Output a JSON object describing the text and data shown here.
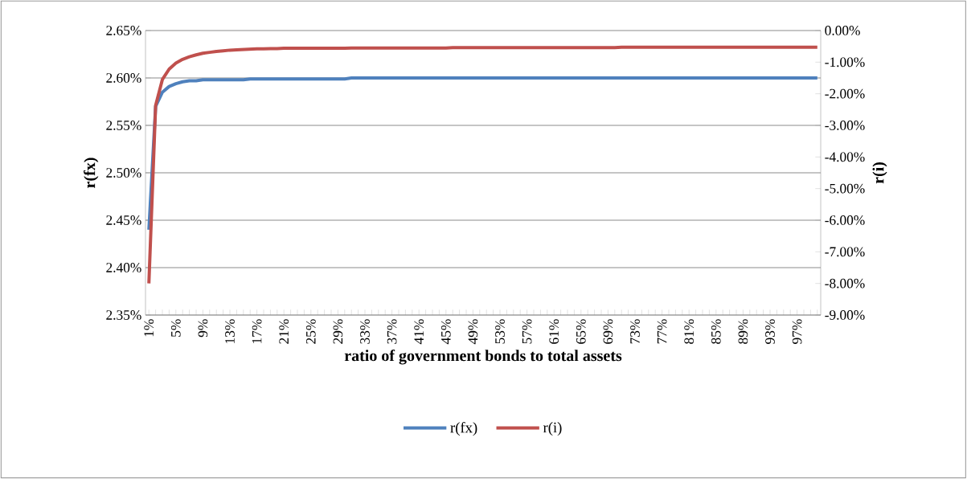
{
  "chart_data": {
    "type": "line",
    "xlabel": "ratio of government bonds to total assets",
    "ylabel": "r(fx)",
    "y2label": "r(i)",
    "categories": [
      "1%",
      null,
      null,
      null,
      "5%",
      null,
      null,
      null,
      "9%",
      null,
      null,
      null,
      "13%",
      null,
      null,
      null,
      "17%",
      null,
      null,
      null,
      "21%",
      null,
      null,
      null,
      "25%",
      null,
      null,
      null,
      "29%",
      null,
      null,
      null,
      "33%",
      null,
      null,
      null,
      "37%",
      null,
      null,
      null,
      "41%",
      null,
      null,
      null,
      "45%",
      null,
      null,
      null,
      "49%",
      null,
      null,
      null,
      "53%",
      null,
      null,
      null,
      "57%",
      null,
      null,
      null,
      "61%",
      null,
      null,
      null,
      "65%",
      null,
      null,
      null,
      "69%",
      null,
      null,
      null,
      "73%",
      null,
      null,
      null,
      "77%",
      null,
      null,
      null,
      "81%",
      null,
      null,
      null,
      "85%",
      null,
      null,
      null,
      "89%",
      null,
      null,
      null,
      "93%",
      null,
      null,
      null,
      "97%",
      null,
      null,
      null
    ],
    "series": [
      {
        "name": "r(fx)",
        "color": "#4f81bd",
        "values": [
          2.44,
          2.57,
          2.585,
          2.591,
          2.594,
          2.596,
          2.597,
          2.597,
          2.598,
          2.598,
          2.598,
          2.598,
          2.598,
          2.598,
          2.598,
          2.599,
          2.599,
          2.599,
          2.599,
          2.599,
          2.599,
          2.599,
          2.599,
          2.599,
          2.599,
          2.599,
          2.599,
          2.599,
          2.599,
          2.599,
          2.6,
          2.6,
          2.6,
          2.6,
          2.6,
          2.6,
          2.6,
          2.6,
          2.6,
          2.6,
          2.6,
          2.6,
          2.6,
          2.6,
          2.6,
          2.6,
          2.6,
          2.6,
          2.6,
          2.6,
          2.6,
          2.6,
          2.6,
          2.6,
          2.6,
          2.6,
          2.6,
          2.6,
          2.6,
          2.6,
          2.6,
          2.6,
          2.6,
          2.6,
          2.6,
          2.6,
          2.6,
          2.6,
          2.6,
          2.6,
          2.6,
          2.6,
          2.6,
          2.6,
          2.6,
          2.6,
          2.6,
          2.6,
          2.6,
          2.6,
          2.6,
          2.6,
          2.6,
          2.6,
          2.6,
          2.6,
          2.6,
          2.6,
          2.6,
          2.6,
          2.6,
          2.6,
          2.6,
          2.6,
          2.6,
          2.6,
          2.6,
          2.6,
          2.6,
          2.6
        ]
      },
      {
        "name": "r(i)",
        "color": "#c0504d",
        "axis": "y2",
        "values": [
          -8.0,
          -2.37,
          -1.55,
          -1.22,
          -1.03,
          -0.91,
          -0.83,
          -0.77,
          -0.72,
          -0.69,
          -0.66,
          -0.64,
          -0.62,
          -0.61,
          -0.6,
          -0.59,
          -0.58,
          -0.58,
          -0.57,
          -0.57,
          -0.56,
          -0.56,
          -0.56,
          -0.56,
          -0.56,
          -0.56,
          -0.56,
          -0.56,
          -0.56,
          -0.56,
          -0.55,
          -0.55,
          -0.55,
          -0.55,
          -0.55,
          -0.55,
          -0.55,
          -0.55,
          -0.55,
          -0.55,
          -0.55,
          -0.55,
          -0.55,
          -0.55,
          -0.55,
          -0.54,
          -0.54,
          -0.54,
          -0.54,
          -0.54,
          -0.54,
          -0.54,
          -0.54,
          -0.54,
          -0.54,
          -0.54,
          -0.54,
          -0.54,
          -0.54,
          -0.54,
          -0.54,
          -0.54,
          -0.54,
          -0.54,
          -0.54,
          -0.54,
          -0.54,
          -0.54,
          -0.54,
          -0.54,
          -0.53,
          -0.53,
          -0.53,
          -0.53,
          -0.53,
          -0.53,
          -0.53,
          -0.53,
          -0.53,
          -0.53,
          -0.53,
          -0.53,
          -0.53,
          -0.53,
          -0.53,
          -0.53,
          -0.53,
          -0.53,
          -0.53,
          -0.53,
          -0.53,
          -0.53,
          -0.53,
          -0.53,
          -0.53,
          -0.53,
          -0.53,
          -0.53,
          -0.53,
          -0.53
        ]
      }
    ],
    "ylim": [
      2.35,
      2.65
    ],
    "yticks": [
      {
        "value": 2.35,
        "label": "2.35%"
      },
      {
        "value": 2.4,
        "label": "2.40%"
      },
      {
        "value": 2.45,
        "label": "2.45%"
      },
      {
        "value": 2.5,
        "label": "2.50%"
      },
      {
        "value": 2.55,
        "label": "2.55%"
      },
      {
        "value": 2.6,
        "label": "2.60%"
      },
      {
        "value": 2.65,
        "label": "2.65%"
      }
    ],
    "y2lim": [
      -9,
      0
    ],
    "y2ticks": [
      {
        "value": -9,
        "label": "-9.00%"
      },
      {
        "value": -8,
        "label": "-8.00%"
      },
      {
        "value": -7,
        "label": "-7.00%"
      },
      {
        "value": -6,
        "label": "-6.00%"
      },
      {
        "value": -5,
        "label": "-5.00%"
      },
      {
        "value": -4,
        "label": "-4.00%"
      },
      {
        "value": -3,
        "label": "-3.00%"
      },
      {
        "value": -2,
        "label": "-2.00%"
      },
      {
        "value": -1,
        "label": "-1.00%"
      },
      {
        "value": 0,
        "label": "0.00%"
      }
    ],
    "grid": "y",
    "legend": "bottom",
    "marker": "none",
    "line_style": "solid"
  }
}
